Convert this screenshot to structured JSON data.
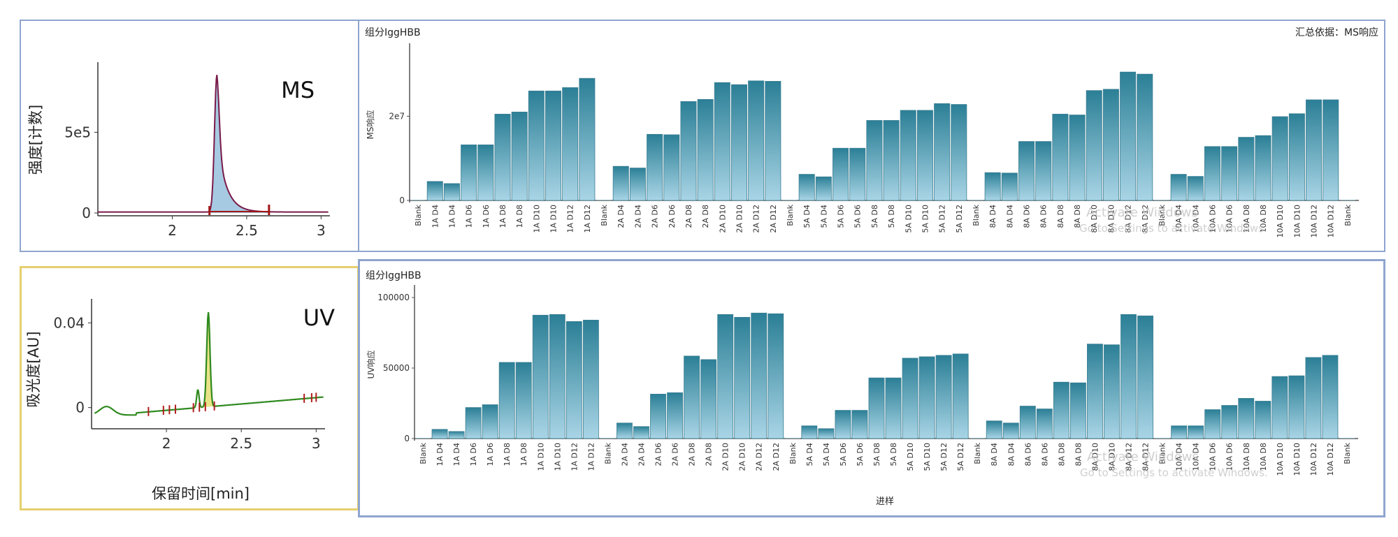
{
  "ms_chromatogram": {
    "label": "MS",
    "ylabel": "强度[计数]",
    "y_ticks": [
      "5e5",
      "0"
    ],
    "x_ticks": [
      "2",
      "2.5",
      "3"
    ],
    "trace_color": "#7a1a4a",
    "fill_color": "#9cc4de",
    "peak": {
      "apex_min": 2.3,
      "apex_value": 850000,
      "integration_start_min": 2.25,
      "integration_end_min": 2.65
    }
  },
  "uv_chromatogram": {
    "label": "UV",
    "ylabel": "吸光度[AU]",
    "xlabel": "保留时间[min]",
    "y_ticks": [
      "0.04",
      "0"
    ],
    "x_ticks": [
      "2",
      "2.5",
      "3"
    ],
    "trace_color": "#2f8a1e",
    "fill_color": "#e7e07a",
    "peak": {
      "apex_min": 2.28,
      "apex_value": 0.047
    }
  },
  "ms_bar_chart": {
    "title": "组分IggHBB",
    "summary": "汇总依据：MS响应",
    "ylabel": "MS响应",
    "ytick_labels": [
      "2e7",
      "0"
    ]
  },
  "uv_bar_chart": {
    "title": "组分IggHBB",
    "ylabel": "UV响应",
    "xlabel": "进样",
    "ytick_labels": [
      "100000",
      "50000",
      "0"
    ]
  },
  "watermark": {
    "line1": "Activate Windows",
    "line2": "Go to Settings to activate Windows."
  },
  "chart_data": [
    {
      "type": "bar",
      "title": "组分IggHBB",
      "ylabel": "MS响应",
      "xlabel": "",
      "ylim": [
        0,
        36000000
      ],
      "categories": [
        "Blank",
        "1A D4",
        "1A D4",
        "1A D6",
        "1A D6",
        "1A D8",
        "1A D8",
        "1A D10",
        "1A D10",
        "1A D12",
        "1A D12",
        "Blank",
        "2A D4",
        "2A D4",
        "2A D6",
        "2A D6",
        "2A D8",
        "2A D8",
        "2A D10",
        "2A D10",
        "2A D12",
        "2A D12",
        "Blank",
        "5A D4",
        "5A D4",
        "5A D6",
        "5A D6",
        "5A D8",
        "5A D8",
        "5A D10",
        "5A D10",
        "5A D12",
        "5A D12",
        "Blank",
        "8A D4",
        "8A D4",
        "8A D6",
        "8A D6",
        "8A D8",
        "8A D8",
        "8A D10",
        "8A D10",
        "8A D12",
        "8A D12",
        "Blank",
        "10A D4",
        "10A D4",
        "10A D6",
        "10A D6",
        "10A D8",
        "10A D8",
        "10A D10",
        "10A D10",
        "10A D12",
        "10A D12",
        "Blank"
      ],
      "values": [
        0,
        4500000,
        4000000,
        13200000,
        13200000,
        20500000,
        21000000,
        26000000,
        26000000,
        26800000,
        29000000,
        0,
        8100000,
        7700000,
        15700000,
        15600000,
        23500000,
        24000000,
        28000000,
        27500000,
        28400000,
        28300000,
        0,
        6200000,
        5600000,
        12400000,
        12400000,
        19000000,
        19000000,
        21400000,
        21400000,
        23000000,
        22800000,
        0,
        6600000,
        6500000,
        14000000,
        14000000,
        20500000,
        20300000,
        26100000,
        26400000,
        30500000,
        30000000,
        0,
        6200000,
        5700000,
        12800000,
        12800000,
        15000000,
        15400000,
        19900000,
        20600000,
        23900000,
        23900000,
        0
      ]
    },
    {
      "type": "bar",
      "title": "组分IggHBB",
      "ylabel": "UV响应",
      "xlabel": "进样",
      "ylim": [
        0,
        105000
      ],
      "categories": [
        "Blank",
        "1A D4",
        "1A D4",
        "1A D6",
        "1A D6",
        "1A D8",
        "1A D8",
        "1A D10",
        "1A D10",
        "1A D12",
        "1A D12",
        "Blank",
        "2A D4",
        "2A D4",
        "2A D6",
        "2A D6",
        "2A D8",
        "2A D8",
        "2A D10",
        "2A D10",
        "2A D12",
        "2A D12",
        "Blank",
        "5A D4",
        "5A D4",
        "5A D6",
        "5A D6",
        "5A D8",
        "5A D8",
        "5A D10",
        "5A D10",
        "5A D12",
        "5A D12",
        "Blank",
        "8A D4",
        "8A D4",
        "8A D6",
        "8A D6",
        "8A D8",
        "8A D8",
        "8A D10",
        "8A D10",
        "8A D12",
        "8A D12",
        "Blank",
        "10A D4",
        "10A D4",
        "10A D6",
        "10A D6",
        "10A D8",
        "10A D8",
        "10A D10",
        "10A D10",
        "10A D12",
        "10A D12",
        "Blank"
      ],
      "values": [
        0,
        6500,
        5000,
        22000,
        24000,
        54000,
        54000,
        87500,
        88000,
        83000,
        84000,
        0,
        11000,
        8500,
        31500,
        32500,
        58500,
        56000,
        88000,
        86000,
        89000,
        88500,
        0,
        9000,
        7000,
        20000,
        20000,
        43000,
        43000,
        57000,
        58000,
        59000,
        60000,
        0,
        12500,
        11000,
        23000,
        21000,
        40000,
        39500,
        67000,
        66500,
        88000,
        87000,
        0,
        9000,
        9000,
        20500,
        23500,
        28500,
        26500,
        44000,
        44500,
        57500,
        59000,
        0
      ]
    }
  ]
}
